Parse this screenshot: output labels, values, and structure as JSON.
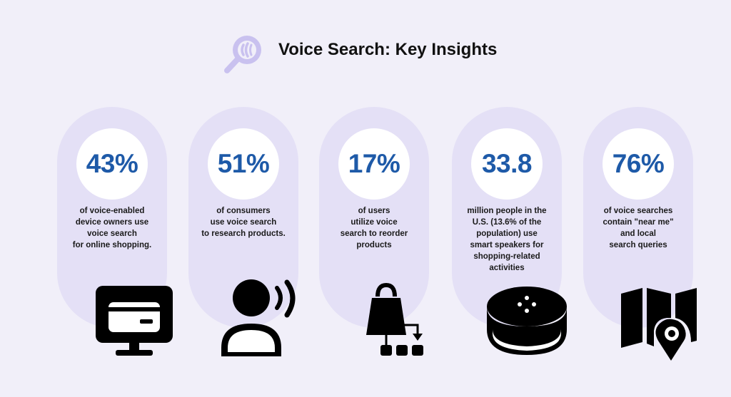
{
  "header": {
    "title": "Voice Search: Key Insights",
    "icon": "magnifier-sound-icon"
  },
  "colors": {
    "background": "#f1eff9",
    "card": "#e4e0f6",
    "stat": "#1e5aa8",
    "icon_accent": "#c9c1ef"
  },
  "cards": [
    {
      "value": "43%",
      "text": "of voice-enabled\ndevice owners use\nvoice search\nfor online shopping.",
      "icon": "monitor-credit-card-icon"
    },
    {
      "value": "51%",
      "text": "of consumers\nuse voice search\nto research products.",
      "icon": "person-speaking-icon"
    },
    {
      "value": "17%",
      "text": "of users\nutilize voice\nsearch to reorder\nproducts",
      "icon": "shopping-bag-reorder-icon"
    },
    {
      "value": "33.8",
      "text": "million people in the\nU.S. (13.6% of the\npopulation) use\nsmart speakers for\nshopping-related\nactivities",
      "icon": "smart-speaker-icon"
    },
    {
      "value": "76%",
      "text": "of voice searches\ncontain \"near me\"\nand local\nsearch queries",
      "icon": "map-pin-icon"
    }
  ]
}
